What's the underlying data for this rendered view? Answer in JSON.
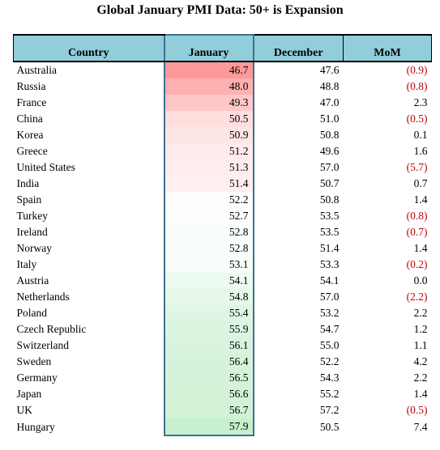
{
  "title": "Global January PMI Data: 50+ is Expansion",
  "columns": [
    "Country",
    "January",
    "December",
    "MoM"
  ],
  "chart_data": {
    "type": "table",
    "title": "Global January PMI Data: 50+ is Expansion",
    "columns": [
      "Country",
      "January",
      "December",
      "MoM"
    ],
    "rows": [
      {
        "country": "Australia",
        "january": "46.7",
        "december": "47.6",
        "mom": "(0.9)"
      },
      {
        "country": "Russia",
        "january": "48.0",
        "december": "48.8",
        "mom": "(0.8)"
      },
      {
        "country": "France",
        "january": "49.3",
        "december": "47.0",
        "mom": "2.3"
      },
      {
        "country": "China",
        "january": "50.5",
        "december": "51.0",
        "mom": "(0.5)"
      },
      {
        "country": "Korea",
        "january": "50.9",
        "december": "50.8",
        "mom": "0.1"
      },
      {
        "country": "Greece",
        "january": "51.2",
        "december": "49.6",
        "mom": "1.6"
      },
      {
        "country": "United States",
        "january": "51.3",
        "december": "57.0",
        "mom": "(5.7)"
      },
      {
        "country": "India",
        "january": "51.4",
        "december": "50.7",
        "mom": "0.7"
      },
      {
        "country": "Spain",
        "january": "52.2",
        "december": "50.8",
        "mom": "1.4"
      },
      {
        "country": "Turkey",
        "january": "52.7",
        "december": "53.5",
        "mom": "(0.8)"
      },
      {
        "country": "Ireland",
        "january": "52.8",
        "december": "53.5",
        "mom": "(0.7)"
      },
      {
        "country": "Norway",
        "january": "52.8",
        "december": "51.4",
        "mom": "1.4"
      },
      {
        "country": "Italy",
        "january": "53.1",
        "december": "53.3",
        "mom": "(0.2)"
      },
      {
        "country": "Austria",
        "january": "54.1",
        "december": "54.1",
        "mom": "0.0"
      },
      {
        "country": "Netherlands",
        "january": "54.8",
        "december": "57.0",
        "mom": "(2.2)"
      },
      {
        "country": "Poland",
        "january": "55.4",
        "december": "53.2",
        "mom": "2.2"
      },
      {
        "country": "Czech Republic",
        "january": "55.9",
        "december": "54.7",
        "mom": "1.2"
      },
      {
        "country": "Switzerland",
        "january": "56.1",
        "december": "55.0",
        "mom": "1.1"
      },
      {
        "country": "Sweden",
        "january": "56.4",
        "december": "52.2",
        "mom": "4.2"
      },
      {
        "country": "Germany",
        "january": "56.5",
        "december": "54.3",
        "mom": "2.2"
      },
      {
        "country": "Japan",
        "january": "56.6",
        "december": "55.2",
        "mom": "1.4"
      },
      {
        "country": "UK",
        "january": "56.7",
        "december": "57.2",
        "mom": "(0.5)"
      },
      {
        "country": "Hungary",
        "january": "57.9",
        "december": "50.5",
        "mom": "7.4"
      }
    ],
    "heatmap_column": "January",
    "colors": {
      "low": "#ff9999",
      "mid": "#ffffff",
      "high": "#c6efce",
      "header": "#92cddc",
      "negative": "#c0000b"
    }
  }
}
